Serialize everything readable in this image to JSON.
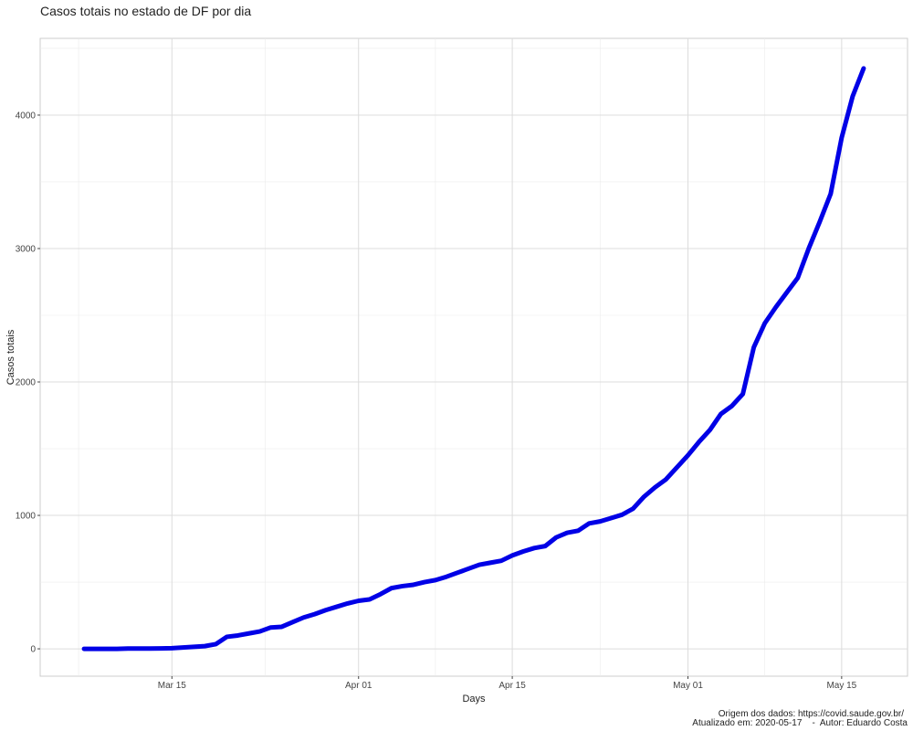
{
  "chart_data": {
    "type": "line",
    "title": "Casos totais no estado de DF por dia",
    "x_label": "Days",
    "y_label": "Casos totais",
    "caption": [
      "Origem dos dados: https://covid.saude.gov.br/",
      "Atualizado em: 2020-05-17    -  Autor: Eduardo Costa"
    ],
    "x": [
      "03-07",
      "03-08",
      "03-09",
      "03-10",
      "03-11",
      "03-12",
      "03-13",
      "03-14",
      "03-15",
      "03-16",
      "03-17",
      "03-18",
      "03-19",
      "03-20",
      "03-21",
      "03-22",
      "03-23",
      "03-24",
      "03-25",
      "03-26",
      "03-27",
      "03-28",
      "03-29",
      "03-30",
      "03-31",
      "04-01",
      "04-02",
      "04-03",
      "04-04",
      "04-05",
      "04-06",
      "04-07",
      "04-08",
      "04-09",
      "04-10",
      "04-11",
      "04-12",
      "04-13",
      "04-14",
      "04-15",
      "04-16",
      "04-17",
      "04-18",
      "04-19",
      "04-20",
      "04-21",
      "04-22",
      "04-23",
      "04-24",
      "04-25",
      "04-26",
      "04-27",
      "04-28",
      "04-29",
      "04-30",
      "05-01",
      "05-02",
      "05-03",
      "05-04",
      "05-05",
      "05-06",
      "05-07",
      "05-08",
      "05-09",
      "05-10",
      "05-11",
      "05-12",
      "05-13",
      "05-14",
      "05-15",
      "05-16",
      "05-17"
    ],
    "series": [
      {
        "name": "Casos totais",
        "color": "#0000e6",
        "values": [
          0,
          0,
          0,
          0,
          2,
          2,
          2,
          3,
          5,
          10,
          15,
          20,
          35,
          90,
          100,
          115,
          130,
          160,
          165,
          200,
          235,
          260,
          290,
          315,
          340,
          360,
          370,
          410,
          455,
          470,
          480,
          500,
          515,
          540,
          570,
          600,
          630,
          645,
          660,
          700,
          730,
          755,
          770,
          835,
          870,
          885,
          940,
          955,
          980,
          1005,
          1050,
          1140,
          1210,
          1270,
          1360,
          1450,
          1550,
          1640,
          1760,
          1820,
          1910,
          2260,
          2440,
          2560,
          2670,
          2780,
          3000,
          3200,
          3410,
          3830,
          4140,
          4350
        ]
      }
    ],
    "xlim": [
      "03-03",
      "05-21"
    ],
    "xticks": [
      {
        "value": "03-15",
        "label": "Mar 15"
      },
      {
        "value": "04-01",
        "label": "Apr 01"
      },
      {
        "value": "04-15",
        "label": "Apr 15"
      },
      {
        "value": "05-01",
        "label": "May 01"
      },
      {
        "value": "05-15",
        "label": "May 15"
      }
    ],
    "ylim": [
      -205,
      4575
    ],
    "yticks": [
      0,
      1000,
      2000,
      3000,
      4000
    ],
    "grid": true
  }
}
